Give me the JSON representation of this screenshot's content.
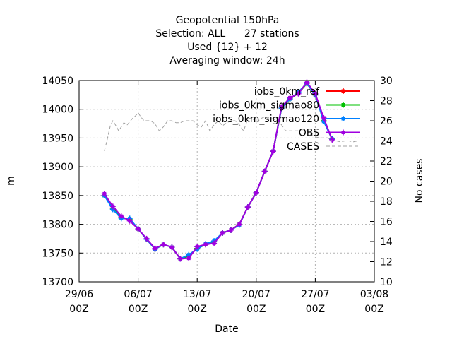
{
  "chart_data": {
    "type": "line",
    "title_lines": [
      "Geopotential 150hPa",
      "Selection: ALL      27 stations",
      "Used {12} + 12",
      "Averaging window: 24h"
    ],
    "xlabel": "Date",
    "ylabel": "m",
    "y2label": "No cases",
    "xlim": [
      0,
      35
    ],
    "ylim": [
      13700,
      14050
    ],
    "y2lim": [
      10,
      30
    ],
    "grid": true,
    "legend_position": "top-right",
    "x_ticks": [
      {
        "x": 0,
        "l1": "29/06",
        "l2": "00Z"
      },
      {
        "x": 7,
        "l1": "06/07",
        "l2": "00Z"
      },
      {
        "x": 14,
        "l1": "13/07",
        "l2": "00Z"
      },
      {
        "x": 21,
        "l1": "20/07",
        "l2": "00Z"
      },
      {
        "x": 28,
        "l1": "27/07",
        "l2": "00Z"
      },
      {
        "x": 35,
        "l1": "03/08",
        "l2": "00Z"
      }
    ],
    "y_ticks": [
      13700,
      13750,
      13800,
      13850,
      13900,
      13950,
      14000,
      14050
    ],
    "y2_ticks": [
      10,
      12,
      14,
      16,
      18,
      20,
      22,
      24,
      26,
      28,
      30
    ],
    "series": [
      {
        "name": "iobs_0km_ref",
        "color": "#ff0000",
        "x": [
          3,
          4,
          5,
          6,
          7,
          8,
          9,
          10,
          11,
          12,
          13,
          14,
          15,
          16,
          17,
          18,
          19,
          20,
          21,
          22,
          23,
          24,
          25,
          26,
          27,
          28,
          29,
          30
        ],
        "values": [
          13850,
          13828,
          13812,
          13808,
          13792,
          13774,
          13757,
          13765,
          13760,
          13740,
          13745,
          13758,
          13765,
          13770,
          13785,
          13790,
          13800,
          13830,
          13855,
          13892,
          13927,
          14002,
          14018,
          14028,
          14045,
          14025,
          13980,
          13948
        ]
      },
      {
        "name": "iobs_0km_sigmao80",
        "color": "#00c000",
        "x": [
          3,
          4,
          5,
          6,
          7,
          8,
          9,
          10,
          11,
          12,
          13,
          14,
          15,
          16,
          17,
          18,
          19,
          20,
          21,
          22,
          23,
          24,
          25,
          26,
          27,
          28,
          29,
          30
        ],
        "values": [
          13850,
          13828,
          13812,
          13808,
          13792,
          13774,
          13757,
          13765,
          13760,
          13740,
          13745,
          13758,
          13765,
          13770,
          13785,
          13790,
          13800,
          13830,
          13855,
          13892,
          13927,
          14002,
          14018,
          14028,
          14045,
          14025,
          13980,
          13948
        ]
      },
      {
        "name": "iobs_0km_sigmao120",
        "color": "#0080ff",
        "x": [
          3,
          4,
          5,
          6,
          7,
          8,
          9,
          10,
          11,
          12,
          13,
          14,
          15,
          16,
          17,
          18,
          19,
          20,
          21,
          22,
          23,
          24,
          25,
          26,
          27,
          28,
          29,
          30
        ],
        "values": [
          13850,
          13826,
          13810,
          13810,
          13792,
          13774,
          13757,
          13765,
          13760,
          13740,
          13747,
          13757,
          13766,
          13771,
          13785,
          13790,
          13799,
          13830,
          13855,
          13892,
          13927,
          14002,
          14018,
          14030,
          14045,
          14025,
          13979,
          13948
        ]
      },
      {
        "name": "OBS",
        "color": "#a000e0",
        "x": [
          3,
          4,
          5,
          6,
          7,
          8,
          9,
          10,
          11,
          12,
          13,
          14,
          15,
          16,
          17,
          18,
          19,
          20,
          21,
          22,
          23,
          24,
          25,
          26,
          27,
          28,
          29,
          30
        ],
        "values": [
          13853,
          13831,
          13814,
          13806,
          13792,
          13775,
          13758,
          13765,
          13760,
          13740,
          13741,
          13761,
          13765,
          13767,
          13785,
          13790,
          13800,
          13830,
          13855,
          13892,
          13927,
          14004,
          14020,
          14027,
          14047,
          14027,
          13985,
          13947
        ]
      },
      {
        "name": "CASES",
        "color": "#a0a0a0",
        "axis": "y2",
        "x": [
          3,
          3.3,
          3.7,
          4,
          4.3,
          4.7,
          5,
          5.3,
          5.7,
          6,
          6.3,
          6.7,
          7,
          7.3,
          7.7,
          8,
          8.5,
          9,
          9.5,
          10,
          10.5,
          11,
          11.5,
          12,
          12.5,
          13,
          13.5,
          14,
          14.5,
          15,
          15.5,
          16,
          16.5,
          17,
          17.5,
          18,
          18.5,
          19,
          19.5,
          20,
          20.5,
          21,
          21.5,
          22,
          22.5,
          23,
          23.5,
          24,
          24.5,
          25,
          25.5,
          26,
          26.5,
          27,
          27.5,
          28,
          28.5,
          29,
          29.5,
          30,
          30.5,
          31,
          31.5,
          32,
          32.5,
          33
        ],
        "values": [
          23,
          24,
          25.5,
          26,
          25.6,
          25,
          25.4,
          25.8,
          25.6,
          25.9,
          26.2,
          26.5,
          26.8,
          26.4,
          26,
          26,
          26,
          25.7,
          25,
          25.4,
          26,
          26,
          25.8,
          25.8,
          26,
          26,
          26,
          25.6,
          25.4,
          26,
          25,
          25.6,
          26,
          25.5,
          25.8,
          26,
          26,
          25.6,
          25,
          26.2,
          26.3,
          25.8,
          26.2,
          26.4,
          26.2,
          26.2,
          25.9,
          25.6,
          25,
          25,
          25,
          25,
          25,
          25,
          24.6,
          24.4,
          24.3,
          24.3,
          24.3,
          24,
          24,
          23.9,
          24,
          24,
          23.9,
          24
        ]
      }
    ]
  }
}
